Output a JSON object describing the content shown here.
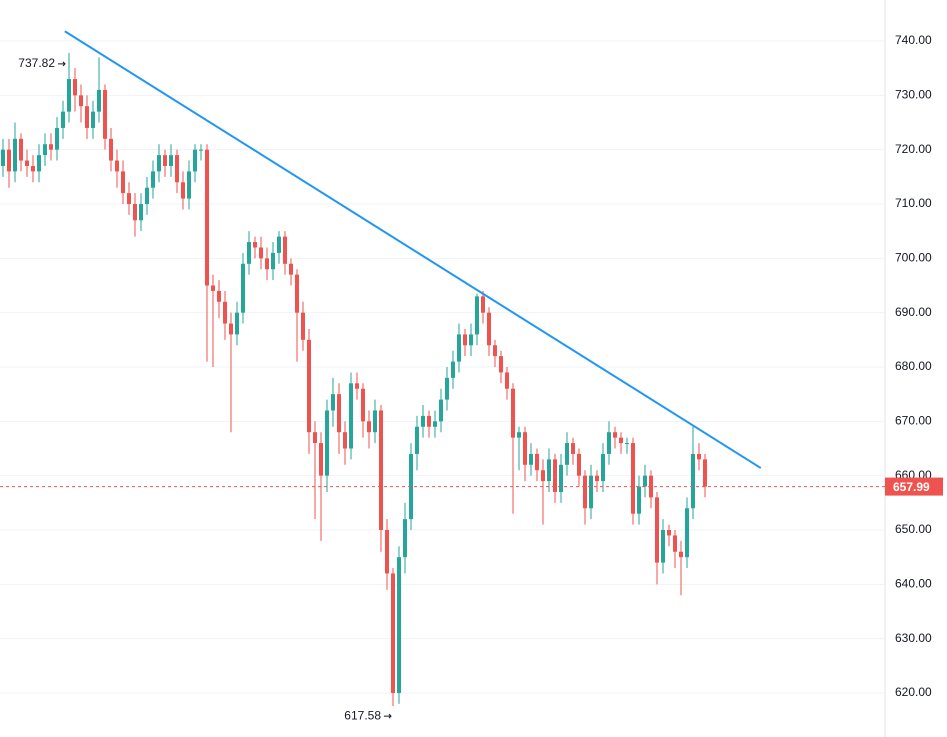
{
  "chart_data": {
    "type": "candlestick",
    "ylim": [
      611.9,
      747.55
    ],
    "yticks": [
      {
        "value": 620,
        "label": "620.00"
      },
      {
        "value": 630,
        "label": "630.00"
      },
      {
        "value": 640,
        "label": "640.00"
      },
      {
        "value": 650,
        "label": "650.00"
      },
      {
        "value": 660,
        "label": "660.00"
      },
      {
        "value": 670,
        "label": "670.00"
      },
      {
        "value": 680,
        "label": "680.00"
      },
      {
        "value": 690,
        "label": "690.00"
      },
      {
        "value": 700,
        "label": "700.00"
      },
      {
        "value": 710,
        "label": "710.00"
      },
      {
        "value": 720,
        "label": "720.00"
      },
      {
        "value": 730,
        "label": "730.00"
      },
      {
        "value": 740,
        "label": "740.00"
      }
    ],
    "grid": true,
    "up_color": "#26a69a",
    "down_color": "#ef5350",
    "trendline_color": "#2196f3",
    "series": [
      {
        "open": [
          717,
          720,
          716,
          722,
          718,
          717,
          716,
          719,
          721,
          720,
          724,
          727,
          733,
          730,
          728,
          724,
          727,
          731,
          722,
          718,
          716,
          712,
          710,
          707,
          710,
          713,
          716,
          719,
          717,
          719,
          714,
          711,
          716,
          720,
          720,
          695,
          694,
          692,
          688,
          686,
          690,
          699,
          703,
          702,
          700,
          698,
          701,
          704,
          699,
          697,
          690,
          685,
          668,
          666,
          660,
          672,
          675,
          668,
          665,
          677,
          676,
          670,
          668,
          672,
          650,
          642,
          620,
          645,
          652,
          664,
          669,
          671,
          669,
          670,
          674,
          678,
          681,
          686,
          684,
          686,
          693,
          690,
          684,
          682,
          679,
          676,
          667,
          668,
          662,
          664,
          661,
          659,
          663,
          657,
          662,
          666,
          664,
          660,
          654,
          660,
          659,
          664,
          668,
          667,
          666,
          666,
          653,
          658,
          660,
          656,
          644,
          650,
          649,
          646,
          645,
          654,
          664,
          663
        ],
        "high": [
          722,
          722,
          725,
          723,
          720,
          719,
          721,
          723,
          723,
          726,
          729,
          737.82,
          735,
          732,
          730,
          729,
          737,
          732,
          724,
          720,
          718,
          714,
          712,
          712,
          715,
          718,
          721,
          720,
          721,
          720,
          716,
          718,
          721,
          721,
          721,
          697,
          696,
          694,
          690,
          692,
          701,
          705,
          704,
          704,
          702,
          703,
          705,
          705,
          700,
          698,
          692,
          687,
          670,
          668,
          674,
          678,
          677,
          670,
          679,
          679,
          677,
          672,
          674,
          673,
          652,
          643,
          647,
          655,
          666,
          671,
          673,
          672,
          672,
          676,
          680,
          683,
          688,
          687,
          688,
          693.5,
          694,
          691,
          685,
          683,
          680,
          677,
          669,
          669,
          666,
          665,
          663,
          665,
          664,
          664,
          668,
          667,
          665,
          661,
          662,
          661,
          666,
          670,
          669,
          668,
          667,
          667,
          660,
          662,
          661,
          657,
          652,
          651,
          650,
          648,
          656,
          669,
          666,
          664
        ],
        "low": [
          715,
          713,
          714,
          716,
          715,
          714,
          714,
          717,
          718,
          718,
          722,
          725,
          727,
          725,
          722,
          722,
          725,
          720,
          716,
          713,
          710,
          708,
          704,
          705,
          708,
          711,
          714,
          715,
          715,
          712,
          709,
          709,
          714,
          718,
          681,
          680,
          689,
          685,
          668,
          684,
          688,
          697,
          700,
          698,
          696,
          696,
          699,
          697,
          695,
          681,
          683,
          664,
          652,
          648,
          657,
          669,
          664,
          662,
          663,
          674,
          667,
          665,
          666,
          646,
          639,
          617.58,
          618,
          642,
          650,
          661,
          667,
          667,
          667,
          668,
          672,
          676,
          679,
          682,
          682,
          684,
          688,
          682,
          680,
          677,
          674,
          653,
          661,
          659,
          660,
          659,
          651,
          657,
          655,
          655,
          660,
          662,
          658,
          651,
          652,
          657,
          657,
          662,
          665,
          664,
          664,
          651,
          651,
          656,
          654,
          640,
          642,
          647,
          643,
          638,
          643,
          652,
          661,
          656
        ],
        "close": [
          720,
          716,
          722,
          718,
          717,
          716,
          719,
          721,
          720,
          724,
          727,
          733,
          730,
          728,
          724,
          727,
          731,
          722,
          718,
          716,
          712,
          710,
          707,
          710,
          713,
          716,
          719,
          717,
          719,
          714,
          711,
          716,
          720,
          720,
          695,
          694,
          692,
          688,
          686,
          690,
          699,
          703,
          702,
          700,
          698,
          701,
          704,
          699,
          697,
          690,
          685,
          668,
          666,
          660,
          672,
          675,
          668,
          665,
          677,
          676,
          670,
          668,
          672,
          650,
          642,
          620,
          645,
          652,
          664,
          669,
          671,
          669,
          670,
          674,
          678,
          681,
          686,
          684,
          686,
          693,
          690,
          684,
          682,
          679,
          676,
          667,
          668,
          662,
          664,
          661,
          659,
          663,
          657,
          662,
          666,
          664,
          660,
          654,
          660,
          659,
          664,
          668,
          667,
          666,
          666,
          653,
          658,
          660,
          656,
          644,
          650,
          649,
          646,
          645,
          654,
          664,
          663,
          657.99
        ]
      }
    ],
    "trendline": {
      "x": [
        10.3,
        126.3
      ],
      "y": [
        741.8,
        661.4
      ]
    }
  }
}
